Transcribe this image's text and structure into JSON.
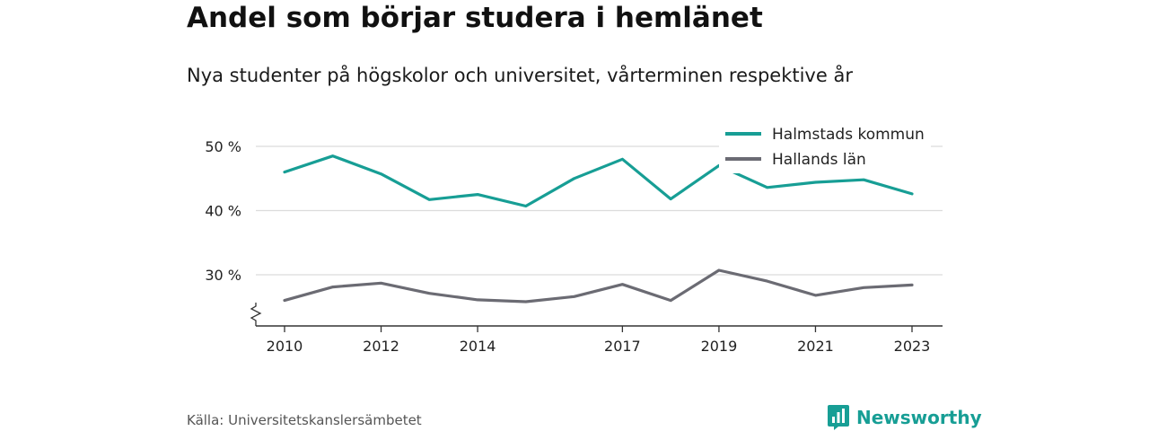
{
  "header": {
    "title": "Andel som börjar studera i hemlänet",
    "subtitle": "Nya studenter på högskolor och universitet, vårterminen respektive år"
  },
  "footer": {
    "source": "Källa: Universitetskanslersämbetet",
    "brand": "Newsworthy",
    "brand_icon": "bar-chart-speech-bubble-icon"
  },
  "colors": {
    "halmstad": "#179e95",
    "halland": "#6b6b73",
    "grid": "#dcdcdc",
    "axis": "#333333",
    "brand": "#179e95"
  },
  "chart_data": {
    "type": "line",
    "title": "Andel som börjar studera i hemlänet",
    "subtitle": "Nya studenter på högskolor och universitet, vårterminen respektive år",
    "x": [
      2010,
      2011,
      2012,
      2013,
      2014,
      2015,
      2016,
      2017,
      2018,
      2019,
      2020,
      2021,
      2022,
      2023
    ],
    "x_ticks": [
      2010,
      2012,
      2014,
      2017,
      2019,
      2021,
      2023
    ],
    "y_ticks": [
      30,
      40,
      50
    ],
    "y_tick_labels": [
      "30 %",
      "40 %",
      "50 %"
    ],
    "ylim": [
      22,
      52
    ],
    "y_axis_break": true,
    "grid": "horizontal",
    "legend_position": "top-right",
    "series": [
      {
        "name": "Halmstads kommun",
        "color": "#179e95",
        "values": [
          46.0,
          48.5,
          45.7,
          41.7,
          42.5,
          40.7,
          45.0,
          48.0,
          41.8,
          47.0,
          43.6,
          44.4,
          44.8,
          42.6
        ]
      },
      {
        "name": "Hallands län",
        "color": "#6b6b73",
        "values": [
          26.0,
          28.1,
          28.7,
          27.1,
          26.1,
          25.8,
          26.6,
          28.5,
          26.0,
          30.7,
          29.0,
          26.8,
          28.0,
          28.4
        ]
      }
    ]
  }
}
